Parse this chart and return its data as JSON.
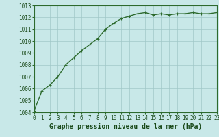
{
  "x": [
    0,
    1,
    2,
    3,
    4,
    5,
    6,
    7,
    8,
    9,
    10,
    11,
    12,
    13,
    14,
    15,
    16,
    17,
    18,
    19,
    20,
    21,
    22,
    23
  ],
  "y": [
    1004.1,
    1005.8,
    1006.3,
    1007.0,
    1008.0,
    1008.6,
    1009.2,
    1009.7,
    1010.2,
    1011.0,
    1011.5,
    1011.9,
    1012.1,
    1012.3,
    1012.4,
    1012.2,
    1012.3,
    1012.2,
    1012.3,
    1012.3,
    1012.4,
    1012.3,
    1012.3,
    1012.4
  ],
  "line_color": "#2d6a2d",
  "marker": "+",
  "marker_size": 3,
  "linewidth": 1.0,
  "background_color": "#c8e8e8",
  "grid_color": "#a0c8c8",
  "xlabel": "Graphe pression niveau de la mer (hPa)",
  "xlabel_fontsize": 7,
  "xlabel_color": "#1a4a1a",
  "ylim": [
    1004,
    1013
  ],
  "xlim": [
    0,
    23
  ],
  "yticks": [
    1004,
    1005,
    1006,
    1007,
    1008,
    1009,
    1010,
    1011,
    1012,
    1013
  ],
  "xticks": [
    0,
    1,
    2,
    3,
    4,
    5,
    6,
    7,
    8,
    9,
    10,
    11,
    12,
    13,
    14,
    15,
    16,
    17,
    18,
    19,
    20,
    21,
    22,
    23
  ],
  "tick_fontsize": 5.5,
  "tick_color": "#1a4a1a",
  "spine_color": "#2d6a2d"
}
